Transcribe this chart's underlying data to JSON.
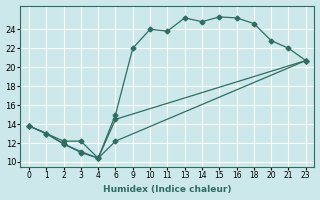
{
  "xlabel": "Humidex (Indice chaleur)",
  "ylabel": "",
  "bg_color": "#cce8ea",
  "grid_color": "#ffffff",
  "line_color": "#2e6e62",
  "xtick_labels": [
    "0",
    "1",
    "2",
    "3",
    "4",
    "6",
    "9",
    "1011",
    "1314",
    "1516",
    "18",
    "2021",
    "23"
  ],
  "yticks": [
    10,
    12,
    14,
    16,
    18,
    20,
    22,
    24
  ],
  "series": [
    {
      "x": [
        0,
        1,
        2,
        3,
        4,
        5,
        6,
        7,
        8,
        9,
        10,
        11,
        12,
        13,
        14,
        15,
        16
      ],
      "y": [
        13.8,
        13.0,
        11.9,
        11.0,
        10.4,
        15.0,
        22.0,
        24.0,
        23.8,
        25.2,
        24.8,
        25.3,
        25.2,
        24.6,
        22.8,
        22.0,
        20.7
      ]
    },
    {
      "x": [
        0,
        1,
        2,
        3,
        4,
        5,
        16
      ],
      "y": [
        13.8,
        13.0,
        11.9,
        11.1,
        10.4,
        14.5,
        20.7
      ]
    },
    {
      "x": [
        0,
        1,
        2,
        3,
        4,
        5,
        16
      ],
      "y": [
        13.8,
        13.0,
        12.2,
        12.2,
        10.4,
        12.2,
        20.7
      ]
    }
  ],
  "xlim": [
    -0.5,
    16.5
  ],
  "ylim": [
    9.5,
    26.5
  ],
  "xtick_positions": [
    0,
    1,
    2,
    3,
    4,
    5,
    6,
    7,
    8,
    9,
    10,
    11,
    12,
    13,
    14,
    15,
    16
  ],
  "xtick_labels_all": [
    "0",
    "1",
    "2",
    "3",
    "4",
    "6",
    "9",
    "10",
    "11",
    "13",
    "14",
    "15",
    "16",
    "18",
    "20",
    "21",
    "23"
  ]
}
